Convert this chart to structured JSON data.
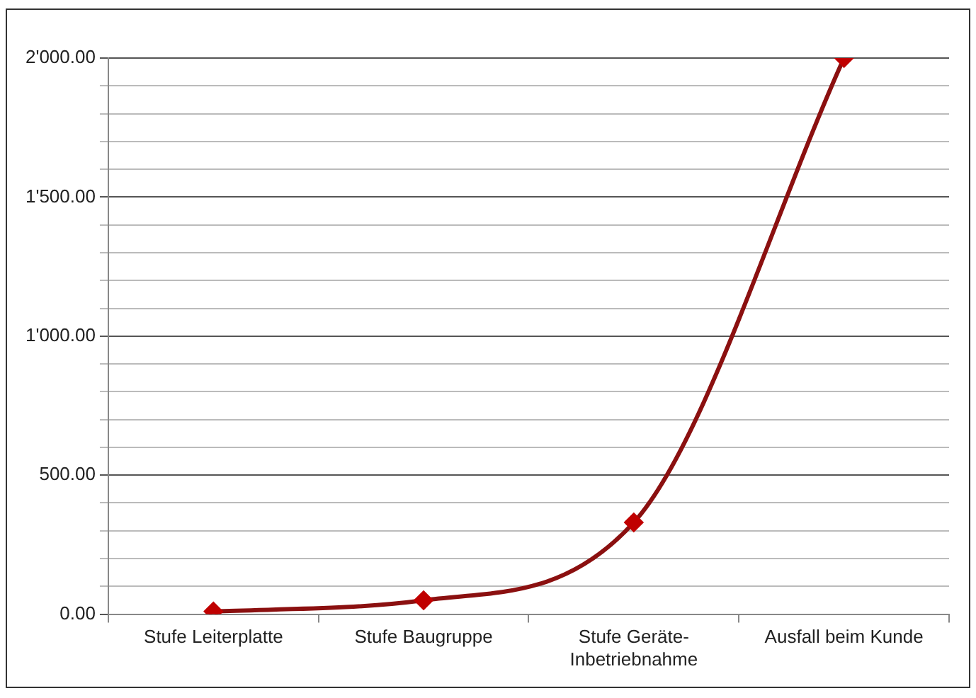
{
  "chart_data": {
    "type": "line",
    "categories": [
      "Stufe Leiterplatte",
      "Stufe Baugruppe",
      "Stufe Geräte-Inbetriebnahme",
      "Ausfall beim Kunde"
    ],
    "series": [
      {
        "color": "#8b1010",
        "values": [
          10,
          50,
          330,
          2000
        ]
      }
    ],
    "marker": "diamond",
    "ylim": [
      0,
      2000
    ],
    "yticks": [
      {
        "value": 0,
        "label": "0.00"
      },
      {
        "value": 100,
        "label": null
      },
      {
        "value": 200,
        "label": null
      },
      {
        "value": 300,
        "label": null
      },
      {
        "value": 400,
        "label": null
      },
      {
        "value": 500,
        "label": "500.00"
      },
      {
        "value": 600,
        "label": null
      },
      {
        "value": 700,
        "label": null
      },
      {
        "value": 800,
        "label": null
      },
      {
        "value": 900,
        "label": null
      },
      {
        "value": 1000,
        "label": "1'000.00"
      },
      {
        "value": 1100,
        "label": null
      },
      {
        "value": 1200,
        "label": null
      },
      {
        "value": 1300,
        "label": null
      },
      {
        "value": 1400,
        "label": null
      },
      {
        "value": 1500,
        "label": "1'500.00"
      },
      {
        "value": 1600,
        "label": null
      },
      {
        "value": 1700,
        "label": null
      },
      {
        "value": 1800,
        "label": null
      },
      {
        "value": 1900,
        "label": null
      },
      {
        "value": 2000,
        "label": "2'000.00"
      }
    ],
    "grid": "y",
    "legend": false
  }
}
